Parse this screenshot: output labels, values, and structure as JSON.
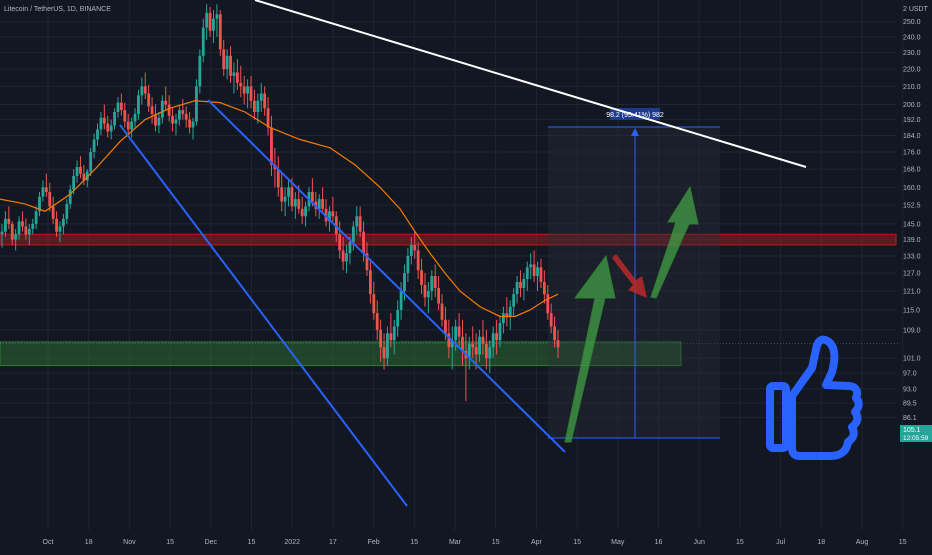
{
  "header": {
    "symbol_line": "Litecoin / TetherUS, 1D, BINANCE"
  },
  "colors": {
    "background": "#131722",
    "grid": "#1f2433",
    "candle_up": "#26a69a",
    "candle_down": "#ef5350",
    "channel": "#2962ff",
    "trendline": "#ffffff",
    "moving_average": "#f57c00",
    "resistance_zone": "#b71c1c",
    "support_zone": "#2e7d32",
    "arrow_green": "#43a047",
    "arrow_red": "#c62828",
    "thumbs_up": "#2962ff",
    "price_badge": "#26a69a"
  },
  "chart_data": {
    "type": "candlestick",
    "title": "Litecoin / TetherUS, 1D, BINANCE",
    "y_axis": {
      "unit_label": "2 USDT",
      "ticks": [
        "250.0",
        "240.0",
        "230.0",
        "220.0",
        "210.0",
        "200.0",
        "192.0",
        "184.0",
        "176.0",
        "168.0",
        "160.0",
        "152.5",
        "145.0",
        "139.0",
        "133.0",
        "127.0",
        "121.0",
        "115.0",
        "109.0",
        "101.0",
        "97.0",
        "93.0",
        "89.5",
        "86.1"
      ],
      "scale": "log",
      "ylim": [
        84,
        262
      ]
    },
    "x_axis": {
      "ticks": [
        "Oct",
        "18",
        "Nov",
        "15",
        "Dec",
        "15",
        "2022",
        "17",
        "Feb",
        "15",
        "Mar",
        "15",
        "Apr",
        "15",
        "May",
        "16",
        "Jun",
        "15",
        "Jul",
        "18",
        "Aug",
        "15"
      ]
    },
    "current_price": {
      "value": "105.1",
      "countdown": "12:05:59"
    },
    "measure_label": "98.2 (95.41%) 982",
    "zones": [
      {
        "name": "resistance",
        "low": 137,
        "high": 141
      },
      {
        "name": "support",
        "low": 99,
        "high": 105.5
      }
    ],
    "candles_ohlc": [
      [
        141,
        145,
        136,
        142
      ],
      [
        142,
        150,
        140,
        147
      ],
      [
        147,
        152,
        143,
        145
      ],
      [
        145,
        146,
        137,
        139
      ],
      [
        139,
        143,
        135,
        141
      ],
      [
        141,
        148,
        139,
        146
      ],
      [
        146,
        150,
        142,
        144
      ],
      [
        144,
        147,
        139,
        141
      ],
      [
        141,
        145,
        137,
        143
      ],
      [
        143,
        147,
        141,
        145
      ],
      [
        145,
        152,
        143,
        150
      ],
      [
        150,
        158,
        148,
        156
      ],
      [
        156,
        163,
        154,
        160
      ],
      [
        160,
        166,
        156,
        158
      ],
      [
        158,
        162,
        150,
        152
      ],
      [
        152,
        156,
        145,
        147
      ],
      [
        147,
        150,
        140,
        142
      ],
      [
        142,
        146,
        138,
        144
      ],
      [
        144,
        149,
        141,
        147
      ],
      [
        147,
        155,
        145,
        153
      ],
      [
        153,
        161,
        151,
        159
      ],
      [
        159,
        168,
        157,
        165
      ],
      [
        165,
        172,
        162,
        169
      ],
      [
        169,
        174,
        164,
        166
      ],
      [
        166,
        170,
        161,
        163
      ],
      [
        163,
        168,
        160,
        167
      ],
      [
        167,
        178,
        165,
        176
      ],
      [
        176,
        185,
        173,
        182
      ],
      [
        182,
        190,
        179,
        187
      ],
      [
        187,
        196,
        184,
        193
      ],
      [
        193,
        200,
        187,
        190
      ],
      [
        190,
        194,
        183,
        186
      ],
      [
        186,
        192,
        182,
        189
      ],
      [
        189,
        198,
        187,
        196
      ],
      [
        196,
        204,
        193,
        201
      ],
      [
        201,
        206,
        194,
        197
      ],
      [
        197,
        201,
        188,
        191
      ],
      [
        191,
        195,
        184,
        187
      ],
      [
        187,
        193,
        183,
        191
      ],
      [
        191,
        198,
        188,
        195
      ],
      [
        195,
        208,
        192,
        205
      ],
      [
        205,
        215,
        200,
        210
      ],
      [
        210,
        218,
        203,
        206
      ],
      [
        206,
        211,
        196,
        199
      ],
      [
        199,
        204,
        190,
        195
      ],
      [
        195,
        200,
        186,
        189
      ],
      [
        189,
        196,
        185,
        193
      ],
      [
        193,
        205,
        190,
        202
      ],
      [
        202,
        210,
        197,
        200
      ],
      [
        200,
        205,
        191,
        194
      ],
      [
        194,
        198,
        186,
        190
      ],
      [
        190,
        195,
        184,
        192
      ],
      [
        192,
        200,
        189,
        197
      ],
      [
        197,
        203,
        192,
        195
      ],
      [
        195,
        199,
        188,
        192
      ],
      [
        192,
        196,
        185,
        188
      ],
      [
        188,
        193,
        182,
        191
      ],
      [
        191,
        214,
        189,
        210
      ],
      [
        210,
        232,
        206,
        228
      ],
      [
        228,
        252,
        224,
        246
      ],
      [
        246,
        262,
        238,
        256
      ],
      [
        256,
        260,
        240,
        244
      ],
      [
        244,
        258,
        236,
        252
      ],
      [
        252,
        262,
        240,
        255
      ],
      [
        255,
        258,
        228,
        232
      ],
      [
        232,
        238,
        216,
        220
      ],
      [
        220,
        232,
        214,
        228
      ],
      [
        228,
        234,
        212,
        216
      ],
      [
        216,
        224,
        206,
        218
      ],
      [
        218,
        226,
        208,
        212
      ],
      [
        212,
        222,
        204,
        210
      ],
      [
        210,
        216,
        200,
        206
      ],
      [
        206,
        214,
        198,
        210
      ],
      [
        210,
        216,
        198,
        202
      ],
      [
        202,
        208,
        192,
        196
      ],
      [
        196,
        206,
        190,
        202
      ],
      [
        202,
        212,
        196,
        206
      ],
      [
        206,
        210,
        194,
        198
      ],
      [
        198,
        204,
        184,
        188
      ],
      [
        188,
        194,
        165,
        170
      ],
      [
        170,
        178,
        160,
        168
      ],
      [
        168,
        174,
        156,
        160
      ],
      [
        160,
        166,
        150,
        154
      ],
      [
        154,
        160,
        148,
        156
      ],
      [
        156,
        164,
        152,
        160
      ],
      [
        160,
        164,
        150,
        152
      ],
      [
        152,
        158,
        147,
        155
      ],
      [
        155,
        161,
        149,
        151
      ],
      [
        151,
        156,
        145,
        148
      ],
      [
        148,
        154,
        144,
        152
      ],
      [
        152,
        160,
        150,
        158
      ],
      [
        158,
        164,
        152,
        154
      ],
      [
        154,
        158,
        148,
        151
      ],
      [
        151,
        157,
        147,
        155
      ],
      [
        155,
        160,
        149,
        151
      ],
      [
        151,
        155,
        144,
        146
      ],
      [
        146,
        152,
        142,
        150
      ],
      [
        150,
        156,
        146,
        148
      ],
      [
        148,
        150,
        138,
        141
      ],
      [
        141,
        146,
        132,
        135
      ],
      [
        135,
        140,
        128,
        131
      ],
      [
        131,
        137,
        127,
        134
      ],
      [
        134,
        140,
        130,
        138
      ],
      [
        138,
        146,
        135,
        144
      ],
      [
        144,
        152,
        141,
        148
      ],
      [
        148,
        152,
        140,
        142
      ],
      [
        142,
        146,
        131,
        134
      ],
      [
        134,
        138,
        126,
        128
      ],
      [
        128,
        132,
        117,
        120
      ],
      [
        120,
        124,
        112,
        114
      ],
      [
        114,
        118,
        106,
        109
      ],
      [
        109,
        112,
        100,
        104
      ],
      [
        104,
        108,
        98,
        101
      ],
      [
        101,
        110,
        99,
        108
      ],
      [
        108,
        114,
        104,
        106
      ],
      [
        106,
        112,
        102,
        110
      ],
      [
        110,
        118,
        107,
        115
      ],
      [
        115,
        124,
        112,
        121
      ],
      [
        121,
        130,
        118,
        127
      ],
      [
        127,
        136,
        124,
        133
      ],
      [
        133,
        140,
        130,
        137
      ],
      [
        137,
        142,
        132,
        135
      ],
      [
        135,
        138,
        125,
        128
      ],
      [
        128,
        132,
        120,
        123
      ],
      [
        123,
        127,
        116,
        119
      ],
      [
        119,
        124,
        114,
        121
      ],
      [
        121,
        128,
        118,
        126
      ],
      [
        126,
        130,
        119,
        122
      ],
      [
        122,
        126,
        115,
        117
      ],
      [
        117,
        120,
        110,
        112
      ],
      [
        112,
        116,
        106,
        108
      ],
      [
        108,
        112,
        101,
        104
      ],
      [
        104,
        110,
        98,
        106
      ],
      [
        106,
        112,
        103,
        110
      ],
      [
        110,
        114,
        104,
        107
      ],
      [
        107,
        112,
        99,
        103
      ],
      [
        103,
        108,
        90,
        101
      ],
      [
        101,
        107,
        98,
        105
      ],
      [
        105,
        110,
        101,
        104
      ],
      [
        104,
        108,
        98,
        102
      ],
      [
        102,
        109,
        100,
        107
      ],
      [
        107,
        112,
        102,
        105
      ],
      [
        105,
        109,
        98,
        101
      ],
      [
        101,
        106,
        97,
        104
      ],
      [
        104,
        110,
        101,
        108
      ],
      [
        108,
        112,
        102,
        106
      ],
      [
        106,
        113,
        104,
        111
      ],
      [
        111,
        116,
        108,
        114
      ],
      [
        114,
        119,
        110,
        113
      ],
      [
        113,
        118,
        109,
        116
      ],
      [
        116,
        122,
        113,
        120
      ],
      [
        120,
        126,
        117,
        124
      ],
      [
        124,
        128,
        119,
        122
      ],
      [
        122,
        127,
        118,
        125
      ],
      [
        125,
        131,
        121,
        129
      ],
      [
        129,
        134,
        125,
        130
      ],
      [
        130,
        135,
        124,
        126
      ],
      [
        126,
        131,
        121,
        129
      ],
      [
        129,
        132,
        122,
        124
      ],
      [
        124,
        128,
        117,
        120
      ],
      [
        120,
        123,
        112,
        114
      ],
      [
        114,
        117,
        108,
        110
      ],
      [
        110,
        113,
        104,
        106
      ],
      [
        106,
        109,
        101,
        104
      ]
    ],
    "moving_average": [
      [
        0,
        155
      ],
      [
        25,
        153
      ],
      [
        45,
        150
      ],
      [
        70,
        157
      ],
      [
        95,
        168
      ],
      [
        120,
        181
      ],
      [
        145,
        192
      ],
      [
        170,
        198
      ],
      [
        195,
        202
      ],
      [
        220,
        201
      ],
      [
        245,
        196
      ],
      [
        270,
        188
      ],
      [
        300,
        182
      ],
      [
        330,
        178
      ],
      [
        355,
        170
      ],
      [
        380,
        160
      ],
      [
        400,
        151
      ],
      [
        415,
        142
      ],
      [
        430,
        134
      ],
      [
        445,
        127
      ],
      [
        460,
        121
      ],
      [
        480,
        116
      ],
      [
        500,
        113
      ],
      [
        515,
        113
      ],
      [
        530,
        115
      ],
      [
        545,
        118
      ],
      [
        558,
        120
      ]
    ]
  },
  "annotations": {
    "arrows": [
      "up-arrow-green",
      "up-arrow-green",
      "down-arrow-red"
    ],
    "sticker": "thumbs-up-icon"
  }
}
